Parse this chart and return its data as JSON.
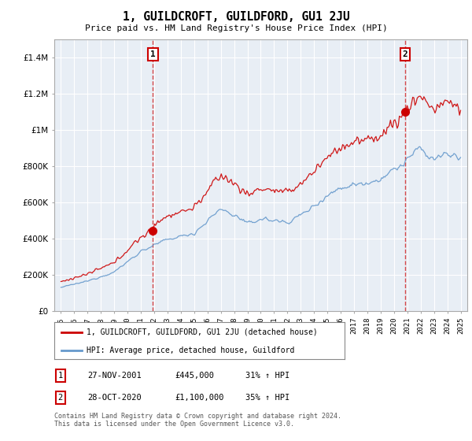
{
  "title": "1, GUILDCROFT, GUILDFORD, GU1 2JU",
  "subtitle": "Price paid vs. HM Land Registry's House Price Index (HPI)",
  "legend_line1": "1, GUILDCROFT, GUILDFORD, GU1 2JU (detached house)",
  "legend_line2": "HPI: Average price, detached house, Guildford",
  "note1": "Contains HM Land Registry data © Crown copyright and database right 2024.",
  "note2": "This data is licensed under the Open Government Licence v3.0.",
  "sale1_date": "27-NOV-2001",
  "sale1_price": 445000,
  "sale1_label": "31% ↑ HPI",
  "sale2_date": "28-OCT-2020",
  "sale2_price": 1100000,
  "sale2_label": "35% ↑ HPI",
  "sale1_x": 2001.91,
  "sale2_x": 2020.83,
  "ylim_max": 1500000,
  "xlim_left": 1994.5,
  "xlim_right": 2025.5,
  "property_color": "#cc0000",
  "hpi_color": "#6699cc",
  "dashed_color": "#cc0000",
  "background_color": "#ffffff",
  "chart_bg_color": "#e8eef5",
  "grid_color": "#ffffff"
}
